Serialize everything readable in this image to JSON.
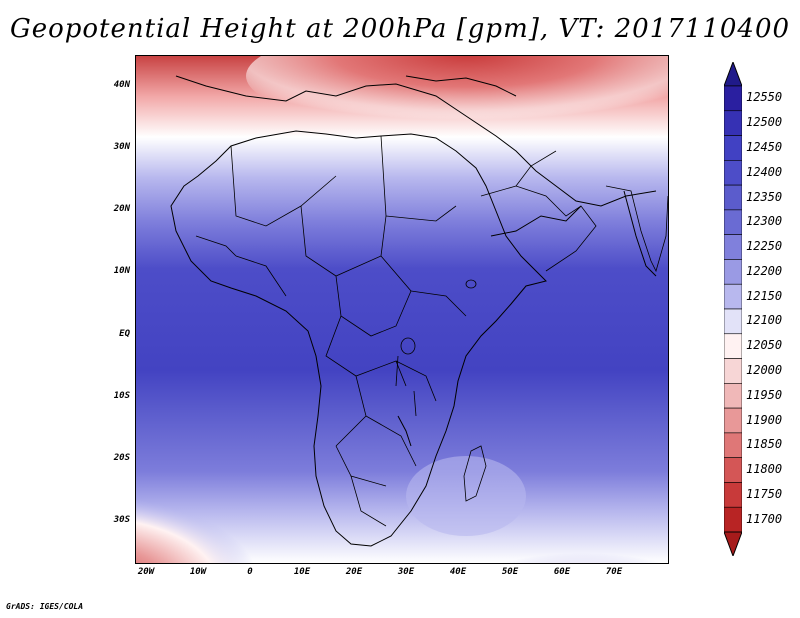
{
  "title": "Geopotential Height at 200hPa [gpm], VT: 2017110400",
  "credit": "GrADS: IGES/COLA",
  "latitude_labels": [
    "40N",
    "30N",
    "20N",
    "10N",
    "EQ",
    "10S",
    "20S",
    "30S"
  ],
  "longitude_labels": [
    "20W",
    "10W",
    "0",
    "10E",
    "20E",
    "30E",
    "40E",
    "50E",
    "60E",
    "70E"
  ],
  "colorbar": {
    "levels": [
      "12550",
      "12500",
      "12450",
      "12400",
      "12350",
      "12300",
      "12250",
      "12200",
      "12150",
      "12100",
      "12050",
      "12000",
      "11950",
      "11900",
      "11850",
      "11800",
      "11750",
      "11700"
    ],
    "colors": [
      "#2a1fa0",
      "#3631b4",
      "#4141c3",
      "#4d4dc8",
      "#5b5ccc",
      "#6a6bd3",
      "#8080dc",
      "#9a9ae4",
      "#b8b8ee",
      "#e2e2f8",
      "#fff2f2",
      "#f7d6d6",
      "#f0b8b8",
      "#e89898",
      "#df7777",
      "#d45656",
      "#c83a3a",
      "#b82424"
    ],
    "top_color": "#201a8a",
    "bottom_color": "#a61b1b"
  }
}
